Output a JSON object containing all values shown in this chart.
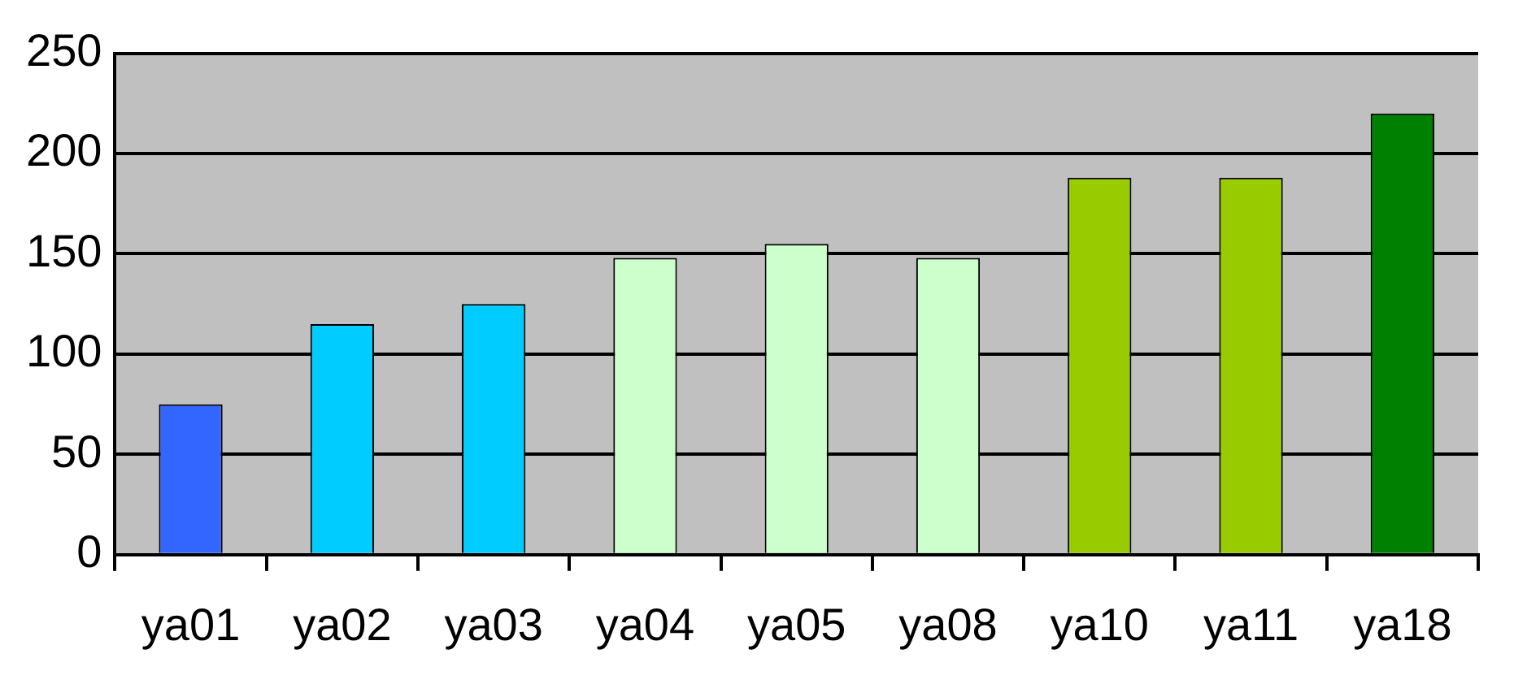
{
  "chart_data": {
    "type": "bar",
    "categories": [
      "ya01",
      "ya02",
      "ya03",
      "ya04",
      "ya05",
      "ya08",
      "ya10",
      "ya11",
      "ya18"
    ],
    "values": [
      75,
      115,
      125,
      148,
      155,
      148,
      188,
      188,
      220
    ],
    "colors": [
      "#3366ff",
      "#00ccff",
      "#00ccff",
      "#ccffcc",
      "#ccffcc",
      "#ccffcc",
      "#99cc00",
      "#99cc00",
      "#008000"
    ],
    "ylim": [
      0,
      250
    ],
    "yticks": [
      0,
      50,
      100,
      150,
      200,
      250
    ],
    "grid": "y",
    "legend": false
  }
}
